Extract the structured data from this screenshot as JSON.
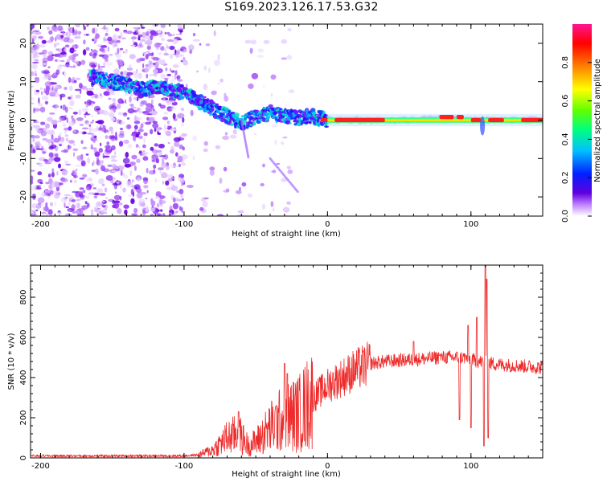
{
  "title": "S169.2023.126.17.53.G32",
  "chart_data": [
    {
      "type": "heatmap",
      "xlabel": "Height of straight line (km)",
      "ylabel": "Frequency (Hz)",
      "xlim": [
        -207,
        150
      ],
      "ylim": [
        -25,
        25
      ],
      "x_ticks": [
        -200,
        -100,
        0,
        100
      ],
      "y_ticks": [
        -20,
        -10,
        0,
        10,
        20
      ],
      "colorbar": {
        "label": "Normalized spectral amplitude",
        "range": [
          0,
          1
        ],
        "ticks": [
          0.0,
          0.2,
          0.4,
          0.6,
          0.8
        ],
        "colors": [
          "#ffffff",
          "#c080ff",
          "#6000e0",
          "#0020ff",
          "#00c0ff",
          "#00ff80",
          "#60ff00",
          "#ffff00",
          "#ff8000",
          "#ff0000",
          "#ff1493"
        ]
      },
      "ridge": [
        {
          "x": -160,
          "y": 11
        },
        {
          "x": -150,
          "y": 10
        },
        {
          "x": -140,
          "y": 9
        },
        {
          "x": -130,
          "y": 8
        },
        {
          "x": -120,
          "y": 9
        },
        {
          "x": -110,
          "y": 8
        },
        {
          "x": -100,
          "y": 7
        },
        {
          "x": -90,
          "y": 5
        },
        {
          "x": -80,
          "y": 3
        },
        {
          "x": -70,
          "y": 1
        },
        {
          "x": -60,
          "y": -1
        },
        {
          "x": -50,
          "y": 1
        },
        {
          "x": -40,
          "y": 2
        },
        {
          "x": -30,
          "y": 1
        },
        {
          "x": -20,
          "y": 0.5
        },
        {
          "x": -10,
          "y": 1
        },
        {
          "x": 0,
          "y": 0
        },
        {
          "x": 50,
          "y": 0
        },
        {
          "x": 80,
          "y": 0.5
        },
        {
          "x": 100,
          "y": 0
        },
        {
          "x": 150,
          "y": 0
        }
      ],
      "hot_segments": [
        {
          "x0": -5,
          "x1": 0,
          "y": 0
        },
        {
          "x0": 5,
          "x1": 40,
          "y": 0
        },
        {
          "x0": 78,
          "x1": 88,
          "y": 0.8
        },
        {
          "x0": 90,
          "x1": 95,
          "y": 0.8
        },
        {
          "x0": 100,
          "x1": 107,
          "y": 0
        },
        {
          "x0": 112,
          "x1": 123,
          "y": 0
        },
        {
          "x0": 135,
          "x1": 150,
          "y": 0
        }
      ]
    },
    {
      "type": "line",
      "xlabel": "Height of straight line (km)",
      "ylabel": "SNR (10 * v/v)",
      "xlim": [
        -207,
        150
      ],
      "ylim": [
        0,
        960
      ],
      "x_ticks": [
        -200,
        -100,
        0,
        100
      ],
      "y_ticks": [
        0,
        200,
        400,
        600,
        800
      ],
      "series_color": "#ee2b2b",
      "envelope": [
        {
          "x": -207,
          "y": 10
        },
        {
          "x": -150,
          "y": 10
        },
        {
          "x": -100,
          "y": 10
        },
        {
          "x": -90,
          "y": 15
        },
        {
          "x": -80,
          "y": 40
        },
        {
          "x": -70,
          "y": 100
        },
        {
          "x": -62,
          "y": 120
        },
        {
          "x": -55,
          "y": 60
        },
        {
          "x": -50,
          "y": 80
        },
        {
          "x": -40,
          "y": 150
        },
        {
          "x": -30,
          "y": 200
        },
        {
          "x": -20,
          "y": 220
        },
        {
          "x": -10,
          "y": 300
        },
        {
          "x": 0,
          "y": 360
        },
        {
          "x": 10,
          "y": 400
        },
        {
          "x": 20,
          "y": 440
        },
        {
          "x": 30,
          "y": 470
        },
        {
          "x": 40,
          "y": 480
        },
        {
          "x": 60,
          "y": 490
        },
        {
          "x": 80,
          "y": 500
        },
        {
          "x": 95,
          "y": 500
        },
        {
          "x": 105,
          "y": 480
        },
        {
          "x": 120,
          "y": 465
        },
        {
          "x": 150,
          "y": 450
        }
      ],
      "spikes": [
        {
          "x": -62,
          "y": 230
        },
        {
          "x": -30,
          "y": 470
        },
        {
          "x": -28,
          "y": 420
        },
        {
          "x": 60,
          "y": 580
        },
        {
          "x": 78,
          "y": 510
        },
        {
          "x": 92,
          "y": 640
        },
        {
          "x": 98,
          "y": 660
        },
        {
          "x": 104,
          "y": 700
        },
        {
          "x": 110,
          "y": 960
        },
        {
          "x": 111,
          "y": 890
        }
      ],
      "dips": [
        {
          "x": 92,
          "y": 190
        },
        {
          "x": 100,
          "y": 150
        },
        {
          "x": 109,
          "y": 60
        },
        {
          "x": 112,
          "y": 100
        }
      ]
    }
  ]
}
